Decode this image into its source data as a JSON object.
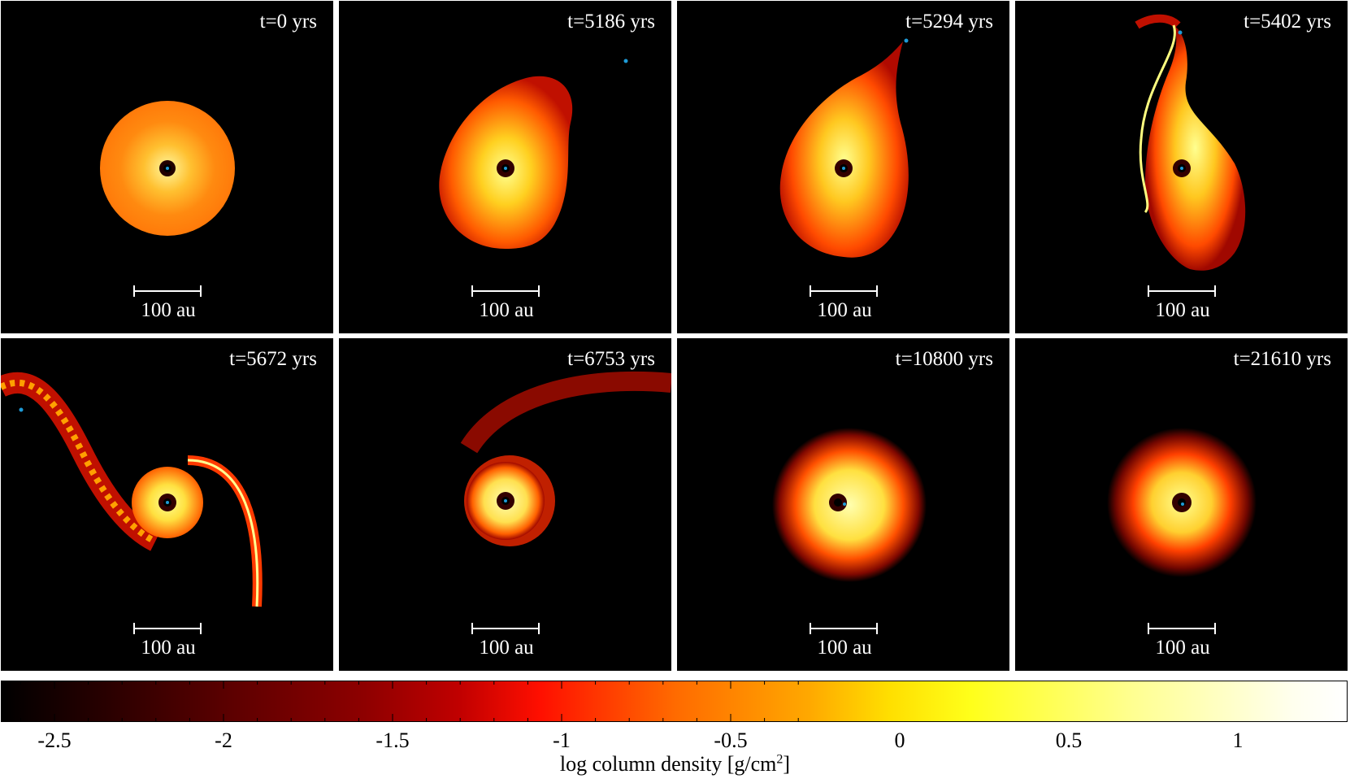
{
  "panels": [
    {
      "time_label": "t=0 yrs",
      "scale_label": "100 au"
    },
    {
      "time_label": "t=5186 yrs",
      "scale_label": "100 au"
    },
    {
      "time_label": "t=5294 yrs",
      "scale_label": "100 au"
    },
    {
      "time_label": "t=5402 yrs",
      "scale_label": "100 au"
    },
    {
      "time_label": "t=5672 yrs",
      "scale_label": "100 au"
    },
    {
      "time_label": "t=6753 yrs",
      "scale_label": "100 au"
    },
    {
      "time_label": "t=10800 yrs",
      "scale_label": "100 au"
    },
    {
      "time_label": "t=21610 yrs",
      "scale_label": "100 au"
    }
  ],
  "colorbar": {
    "ticks": [
      "-2.5",
      "-2",
      "-1.5",
      "-1",
      "-0.5",
      "0",
      "0.5",
      "1"
    ],
    "label_main": "log column density [g/cm",
    "label_sup": "2",
    "label_end": "]",
    "colors": {
      "low": "#000000",
      "mid": "#ff0f00",
      "high": "#ffffee"
    }
  },
  "colors": {
    "background": "#000000",
    "star_marker": "#1e9bd7",
    "text": "#ffffff"
  }
}
